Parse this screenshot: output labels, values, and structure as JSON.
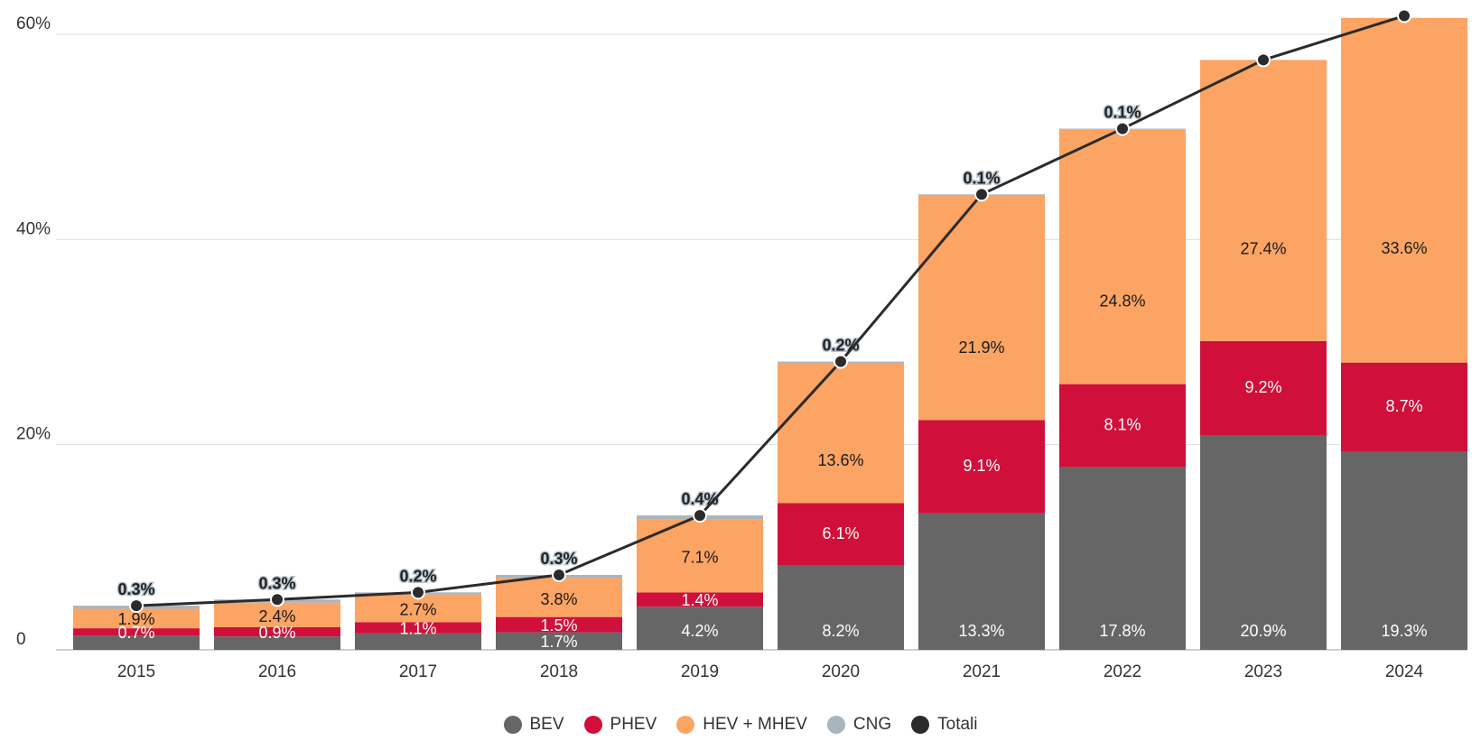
{
  "chart_data": {
    "type": "bar",
    "stacked": true,
    "categories": [
      "2015",
      "2016",
      "2017",
      "2018",
      "2019",
      "2020",
      "2021",
      "2022",
      "2023",
      "2024"
    ],
    "series": [
      {
        "name": "BEV",
        "color": "#666666",
        "values": [
          1.4,
          1.3,
          1.6,
          1.7,
          4.2,
          8.2,
          13.3,
          17.8,
          20.9,
          19.3
        ],
        "labels": [
          "",
          "",
          "",
          "1.7%",
          "4.2%",
          "8.2%",
          "13.3%",
          "17.8%",
          "20.9%",
          "19.3%"
        ]
      },
      {
        "name": "PHEV",
        "color": "#d0103a",
        "values": [
          0.7,
          0.9,
          1.1,
          1.5,
          1.4,
          6.1,
          9.1,
          8.1,
          9.2,
          8.7
        ],
        "labels": [
          "0.7%",
          "0.9%",
          "1.1%",
          "1.5%",
          "1.4%",
          "6.1%",
          "9.1%",
          "8.1%",
          "9.2%",
          "8.7%"
        ]
      },
      {
        "name": "HEV + MHEV",
        "color": "#fba464",
        "values": [
          1.9,
          2.4,
          2.7,
          3.8,
          7.1,
          13.6,
          21.9,
          24.8,
          27.4,
          33.6
        ],
        "labels": [
          "1.9%",
          "2.4%",
          "2.7%",
          "3.8%",
          "7.1%",
          "13.6%",
          "21.9%",
          "24.8%",
          "27.4%",
          "33.6%"
        ]
      },
      {
        "name": "CNG",
        "color": "#a9b4bd",
        "values": [
          0.3,
          0.3,
          0.2,
          0.3,
          0.4,
          0.2,
          0.1,
          0.1,
          0.0,
          0.0
        ],
        "labels": [
          "0.3%",
          "0.3%",
          "0.2%",
          "0.3%",
          "0.4%",
          "0.2%",
          "0.1%",
          "0.1%",
          "",
          ""
        ]
      }
    ],
    "line": {
      "name": "Totali",
      "color": "#2b2b2b",
      "values": [
        4.3,
        4.9,
        5.6,
        7.3,
        13.1,
        28.1,
        44.4,
        50.8,
        57.5,
        61.8
      ]
    },
    "y_ticks": [
      {
        "value": 0,
        "label": "0"
      },
      {
        "value": 20,
        "label": "20%"
      },
      {
        "value": 40,
        "label": "40%"
      },
      {
        "value": 60,
        "label": "60%"
      }
    ],
    "ylim": [
      0,
      60
    ],
    "grid": true,
    "legend_position": "bottom"
  }
}
